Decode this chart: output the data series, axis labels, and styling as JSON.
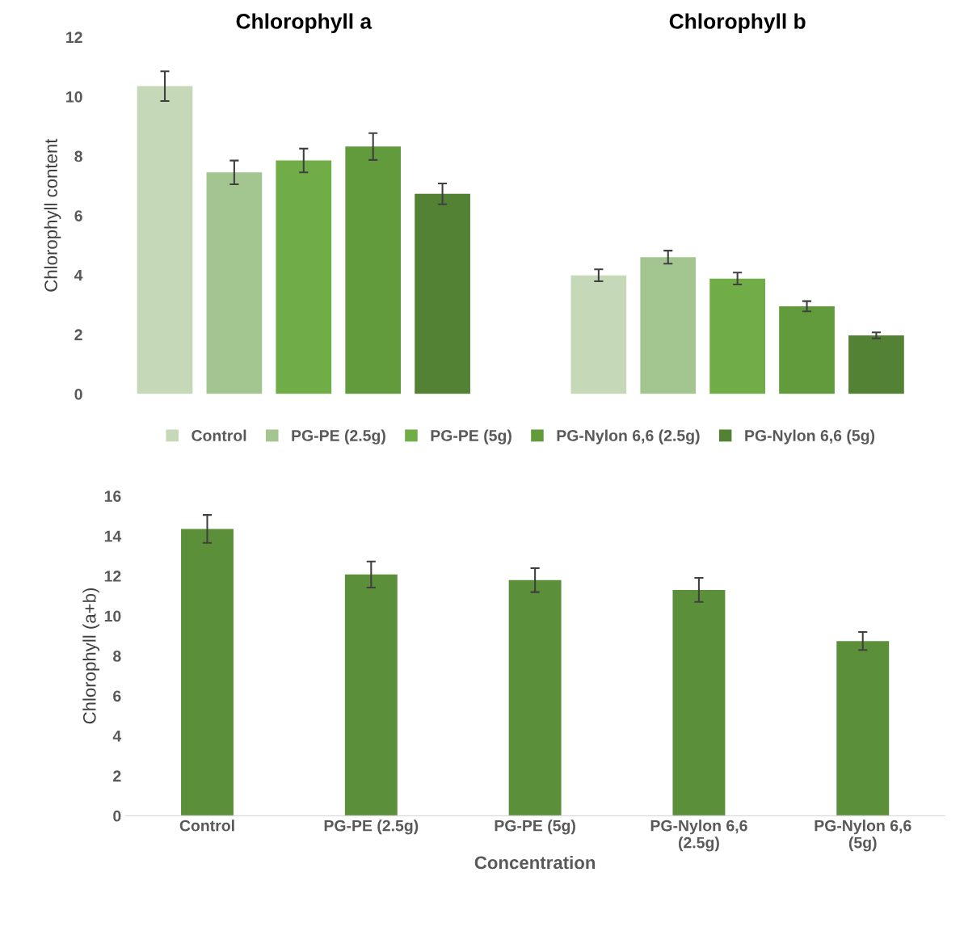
{
  "chart_data": [
    {
      "type": "bar",
      "ylabel": "Chlorophyll content",
      "categories": [
        "Chlorophyll a",
        "Chlorophyll b"
      ],
      "ylim": [
        0,
        12
      ],
      "yticks": [
        0,
        2,
        4,
        6,
        8,
        10,
        12
      ],
      "legend": "bottom",
      "grid": false,
      "series": [
        {
          "name": "Control",
          "color": "#c5d9b9",
          "values": [
            10.35,
            3.99
          ],
          "errors": [
            0.5,
            0.2
          ]
        },
        {
          "name": "PG-PE (2.5g)",
          "color": "#a3c58f",
          "values": [
            7.45,
            4.6
          ],
          "errors": [
            0.4,
            0.22
          ]
        },
        {
          "name": "PG-PE (5g)",
          "color": "#70ad47",
          "values": [
            7.85,
            3.88
          ],
          "errors": [
            0.4,
            0.2
          ]
        },
        {
          "name": "PG-Nylon 6,6 (2.5g)",
          "color": "#629b3c",
          "values": [
            8.32,
            2.95
          ],
          "errors": [
            0.45,
            0.17
          ]
        },
        {
          "name": "PG-Nylon 6,6 (5g)",
          "color": "#548235",
          "values": [
            6.73,
            1.97
          ],
          "errors": [
            0.35,
            0.1
          ]
        }
      ]
    },
    {
      "type": "bar",
      "ylabel": "Chlorophyll (a+b)",
      "xlabel": "Concentration",
      "categories": [
        "Control",
        "PG-PE (2.5g)",
        "PG-PE (5g)",
        "PG-Nylon 6,6\n(2.5g)",
        "PG-Nylon 6,6\n(5g)"
      ],
      "ylim": [
        0,
        16
      ],
      "yticks": [
        0,
        2,
        4,
        6,
        8,
        10,
        12,
        14,
        16
      ],
      "grid": false,
      "series": [
        {
          "color": "#5b8f3a",
          "values": [
            14.35,
            12.07,
            11.79,
            11.3,
            8.74
          ],
          "errors": [
            0.7,
            0.65,
            0.6,
            0.6,
            0.45
          ]
        }
      ]
    }
  ]
}
